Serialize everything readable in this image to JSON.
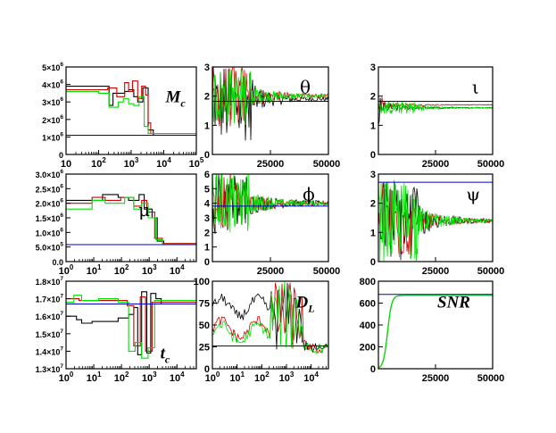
{
  "colors": {
    "black": "#000000",
    "red": "#d00000",
    "green": "#00e000",
    "blue": "#0000cc"
  },
  "chart_data": [
    {
      "id": "mc",
      "type": "line",
      "label": "M",
      "label_sub": "c",
      "x_scale": "log",
      "xlim": [
        10,
        100000
      ],
      "x_ticks": [
        "10",
        "10^2",
        "10^3",
        "10^4",
        "10^5"
      ],
      "ylim": [
        0,
        5000000
      ],
      "y_ticks": [
        "0",
        "1×10^6",
        "2×10^6",
        "3×10^6",
        "4×10^6",
        "5×10^6"
      ],
      "true_value": 1100000
    },
    {
      "id": "theta",
      "type": "line",
      "label": "θ",
      "x_scale": "linear",
      "xlim": [
        0,
        50000
      ],
      "x_ticks": [
        "25000",
        "50000"
      ],
      "ylim": [
        0,
        3
      ],
      "y_ticks": [
        "0",
        "1",
        "2",
        "3"
      ],
      "true_value": 1.82
    },
    {
      "id": "iota",
      "type": "line",
      "label": "ι",
      "x_scale": "linear",
      "xlim": [
        0,
        50000
      ],
      "x_ticks": [
        "25000",
        "50000"
      ],
      "ylim": [
        0,
        3
      ],
      "y_ticks": [
        "0",
        "1",
        "2",
        "3"
      ],
      "true_value": 1.82
    },
    {
      "id": "mu",
      "type": "line",
      "label": "μ",
      "x_scale": "log",
      "xlim": [
        1,
        50000
      ],
      "x_ticks": [
        "10^0",
        "10^1",
        "10^2",
        "10^3",
        "10^4"
      ],
      "ylim": [
        0,
        3000000
      ],
      "y_ticks": [
        "0.0",
        "5.0×10^5",
        "1.0×10^6",
        "1.5×10^6",
        "2.0×10^6",
        "2.5×10^6",
        "3.0×10^6"
      ],
      "true_value": 580000
    },
    {
      "id": "phi",
      "type": "line",
      "label": "ϕ",
      "x_scale": "linear",
      "xlim": [
        0,
        50000
      ],
      "x_ticks": [
        "25000",
        "50000"
      ],
      "ylim": [
        0,
        6
      ],
      "y_ticks": [
        "0",
        "1",
        "2",
        "3",
        "4",
        "5",
        "6"
      ],
      "true_value": 3.8
    },
    {
      "id": "psi",
      "type": "line",
      "label": "ψ",
      "x_scale": "linear",
      "xlim": [
        0,
        50000
      ],
      "x_ticks": [
        "25000",
        "50000"
      ],
      "ylim": [
        0,
        3
      ],
      "y_ticks": [
        "0",
        "1",
        "2",
        "3"
      ],
      "true_value": 2.72
    },
    {
      "id": "tc",
      "type": "line",
      "label": "t",
      "label_sub": "c",
      "x_scale": "log",
      "xlim": [
        1,
        50000
      ],
      "x_ticks": [
        "10^0",
        "10^1",
        "10^2",
        "10^3",
        "10^4"
      ],
      "ylim": [
        13000000,
        18000000
      ],
      "y_ticks": [
        "1.3×10^7",
        "1.4×10^7",
        "1.5×10^7",
        "1.6×10^7",
        "1.7×10^7",
        "1.8×10^7"
      ],
      "true_value": 16700000
    },
    {
      "id": "dl",
      "type": "line",
      "label": "D",
      "label_sub": "L",
      "x_scale": "log",
      "xlim": [
        1,
        50000
      ],
      "x_ticks": [
        "10^0",
        "10^1",
        "10^2",
        "10^3",
        "10^4"
      ],
      "ylim": [
        0,
        100
      ],
      "y_ticks": [
        "0",
        "25",
        "50",
        "75",
        "100"
      ],
      "true_value": 26
    },
    {
      "id": "snr",
      "type": "line",
      "label": "SNR",
      "x_scale": "linear",
      "xlim": [
        0,
        50000
      ],
      "x_ticks": [
        "25000",
        "50000"
      ],
      "ylim": [
        0,
        800
      ],
      "y_ticks": [
        "0",
        "200",
        "400",
        "600",
        "800"
      ],
      "true_value": 680
    }
  ]
}
